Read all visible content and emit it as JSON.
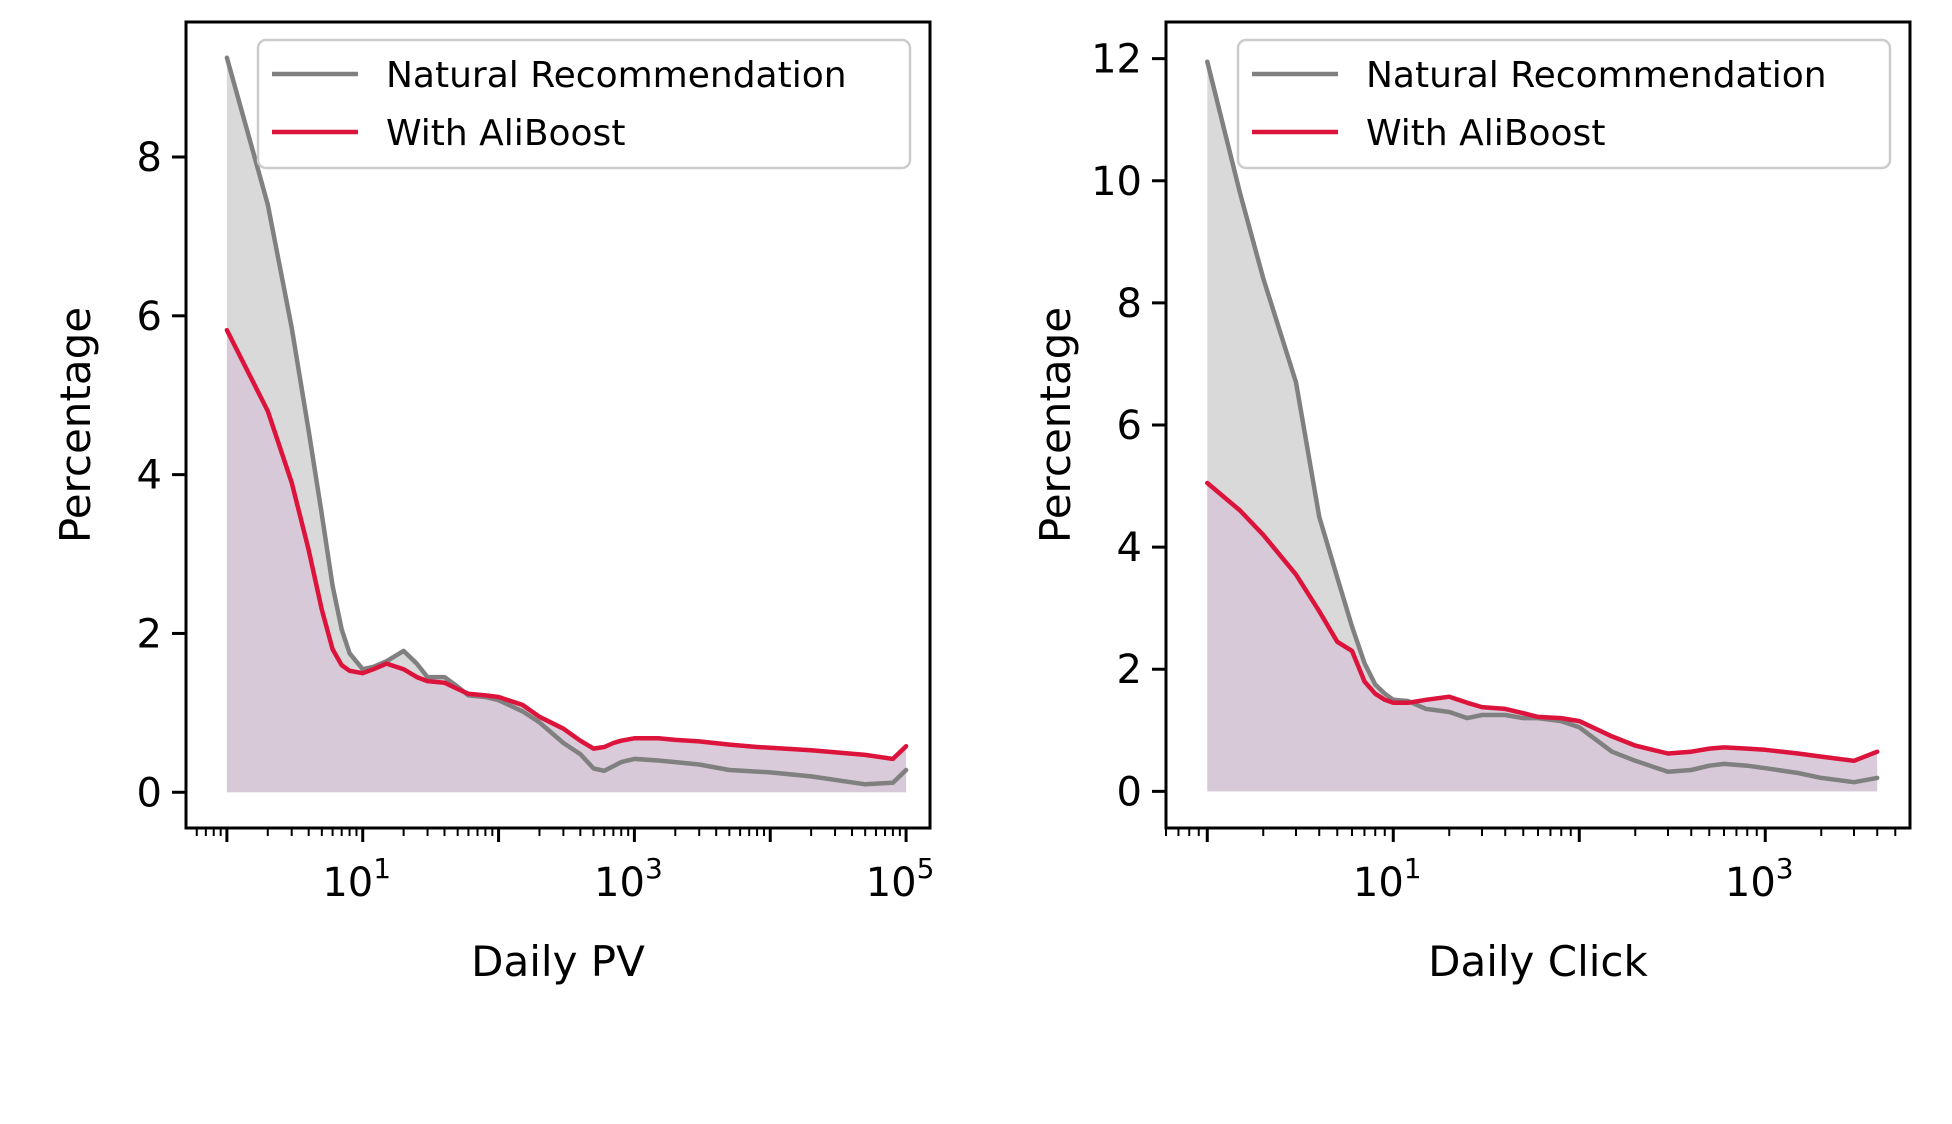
{
  "figure": {
    "background": "#ffffff",
    "colors": {
      "natural_line": "#808080",
      "natural_fill": "#d9d9d9",
      "aliboost_line": "#dc143c",
      "aliboost_fill": "#d8c8d8"
    }
  },
  "chart_data": [
    {
      "type": "area",
      "title": "",
      "xlabel": "Daily PV",
      "ylabel": "Percentage",
      "xscale": "log",
      "xlim": [
        0.5,
        150000
      ],
      "ylim": [
        -0.45,
        9.7
      ],
      "x_ticks": [
        {
          "base": "10",
          "exp": "1"
        },
        {
          "base": "10",
          "exp": "3"
        },
        {
          "base": "10",
          "exp": "5"
        }
      ],
      "x_tick_values": [
        10,
        1000,
        100000
      ],
      "y_ticks": [
        "0",
        "2",
        "4",
        "6",
        "8"
      ],
      "y_tick_values": [
        0,
        2,
        4,
        6,
        8
      ],
      "legend_position": "top-right",
      "grid": false,
      "series": [
        {
          "name": "Natural Recommendation",
          "x": [
            1,
            2,
            3,
            4,
            5,
            6,
            7,
            8,
            10,
            12,
            15,
            20,
            25,
            30,
            40,
            50,
            60,
            80,
            100,
            150,
            200,
            300,
            400,
            500,
            600,
            700,
            800,
            1000,
            1500,
            2000,
            3000,
            5000,
            8000,
            10000,
            20000,
            50000,
            80000,
            100000
          ],
          "values": [
            9.25,
            7.4,
            5.85,
            4.55,
            3.5,
            2.6,
            2.05,
            1.75,
            1.55,
            1.58,
            1.65,
            1.78,
            1.62,
            1.45,
            1.45,
            1.33,
            1.22,
            1.2,
            1.16,
            1.02,
            0.88,
            0.62,
            0.48,
            0.3,
            0.27,
            0.33,
            0.38,
            0.42,
            0.4,
            0.38,
            0.35,
            0.28,
            0.26,
            0.25,
            0.2,
            0.1,
            0.12,
            0.28
          ]
        },
        {
          "name": "With AliBoost",
          "x": [
            1,
            2,
            3,
            4,
            5,
            6,
            7,
            8,
            10,
            12,
            15,
            20,
            25,
            30,
            40,
            50,
            60,
            80,
            100,
            150,
            200,
            300,
            400,
            500,
            600,
            700,
            800,
            1000,
            1500,
            2000,
            3000,
            5000,
            8000,
            10000,
            20000,
            50000,
            80000,
            100000
          ],
          "values": [
            5.82,
            4.8,
            3.9,
            3.05,
            2.3,
            1.8,
            1.6,
            1.53,
            1.5,
            1.55,
            1.62,
            1.55,
            1.45,
            1.4,
            1.38,
            1.3,
            1.24,
            1.22,
            1.2,
            1.1,
            0.95,
            0.8,
            0.65,
            0.55,
            0.57,
            0.62,
            0.65,
            0.68,
            0.68,
            0.66,
            0.64,
            0.6,
            0.57,
            0.56,
            0.53,
            0.47,
            0.42,
            0.58
          ]
        }
      ]
    },
    {
      "type": "area",
      "title": "",
      "xlabel": "Daily Click",
      "ylabel": "Percentage",
      "xscale": "log",
      "xlim": [
        0.6,
        6000
      ],
      "ylim": [
        -0.6,
        12.6
      ],
      "x_ticks": [
        {
          "base": "10",
          "exp": "1"
        },
        {
          "base": "10",
          "exp": "3"
        }
      ],
      "x_tick_values": [
        10,
        1000
      ],
      "y_ticks": [
        "0",
        "2",
        "4",
        "6",
        "8",
        "10",
        "12"
      ],
      "y_tick_values": [
        0,
        2,
        4,
        6,
        8,
        10,
        12
      ],
      "legend_position": "top-right",
      "grid": false,
      "series": [
        {
          "name": "Natural Recommendation",
          "x": [
            1,
            1.5,
            2,
            3,
            4,
            5,
            6,
            7,
            8,
            9,
            10,
            12,
            15,
            20,
            25,
            30,
            40,
            50,
            60,
            80,
            100,
            150,
            200,
            300,
            400,
            500,
            600,
            800,
            1000,
            1500,
            2000,
            3000,
            4000
          ],
          "values": [
            11.95,
            9.8,
            8.4,
            6.7,
            4.5,
            3.5,
            2.7,
            2.1,
            1.75,
            1.6,
            1.5,
            1.48,
            1.35,
            1.3,
            1.2,
            1.25,
            1.25,
            1.2,
            1.2,
            1.15,
            1.05,
            0.65,
            0.5,
            0.32,
            0.35,
            0.42,
            0.45,
            0.42,
            0.38,
            0.3,
            0.22,
            0.15,
            0.22
          ]
        },
        {
          "name": "With AliBoost",
          "x": [
            1,
            1.5,
            2,
            3,
            4,
            5,
            6,
            7,
            8,
            9,
            10,
            12,
            15,
            20,
            25,
            30,
            40,
            50,
            60,
            80,
            100,
            150,
            200,
            300,
            400,
            500,
            600,
            800,
            1000,
            1500,
            2000,
            3000,
            4000
          ],
          "values": [
            5.05,
            4.6,
            4.2,
            3.55,
            2.95,
            2.45,
            2.3,
            1.8,
            1.6,
            1.5,
            1.45,
            1.45,
            1.5,
            1.55,
            1.45,
            1.38,
            1.35,
            1.28,
            1.22,
            1.2,
            1.15,
            0.9,
            0.75,
            0.62,
            0.65,
            0.7,
            0.72,
            0.7,
            0.68,
            0.62,
            0.57,
            0.5,
            0.65
          ]
        }
      ]
    }
  ]
}
